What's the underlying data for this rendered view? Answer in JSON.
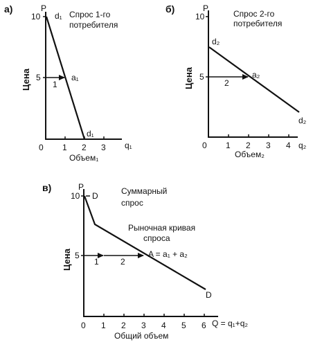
{
  "chart_data": [
    {
      "type": "line",
      "panel_label": "а)",
      "title": "Спрос 1-го потребителя",
      "title_lines": [
        "Спрос 1-го",
        "потребителя"
      ],
      "xlabel": "Объем₁",
      "ylabel": "Цена",
      "x_axis_symbol": "q₁",
      "y_axis_symbol": "P",
      "xlim": [
        0,
        3.7
      ],
      "ylim": [
        0,
        10.8
      ],
      "x_ticks": [
        "0",
        "1",
        "2",
        "3"
      ],
      "x_tick_values": [
        0,
        1,
        2,
        3
      ],
      "y_ticks": [
        "5",
        "10"
      ],
      "y_tick_values": [
        5,
        10
      ],
      "series": [
        {
          "name": "d₁",
          "x": [
            0,
            2
          ],
          "y": [
            10,
            0
          ]
        }
      ],
      "annotations": {
        "top_label": "d₁",
        "bottom_label": "d₁",
        "point_label": "a₁",
        "point": [
          1,
          5
        ],
        "segments": [
          {
            "label": "1",
            "x_from": 0,
            "x_to": 1,
            "y": 5
          }
        ]
      }
    },
    {
      "type": "line",
      "panel_label": "б)",
      "title": "Спрос 2-го потребителя",
      "title_lines": [
        "Спрос 2-го",
        "потребителя"
      ],
      "xlabel": "Объем₂",
      "ylabel": "Цена",
      "x_axis_symbol": "q₂",
      "y_axis_symbol": "P",
      "xlim": [
        0,
        4.6
      ],
      "ylim": [
        0,
        10.8
      ],
      "x_ticks": [
        "0",
        "1",
        "2",
        "3",
        "4"
      ],
      "x_tick_values": [
        0,
        1,
        2,
        3,
        4
      ],
      "y_ticks": [
        "5",
        "10"
      ],
      "y_tick_values": [
        5,
        10
      ],
      "series": [
        {
          "name": "d₂",
          "x": [
            0,
            4.5
          ],
          "y": [
            7.5,
            2.1
          ]
        }
      ],
      "annotations": {
        "top_label": "d₂",
        "bottom_label": "d₂",
        "point_label": "a₂",
        "point": [
          2,
          5
        ],
        "segments": [
          {
            "label": "2",
            "x_from": 0,
            "x_to": 2,
            "y": 5
          }
        ]
      }
    },
    {
      "type": "line",
      "panel_label": "в)",
      "title": "Суммарный спрос",
      "title_lines": [
        "Суммарный",
        "спрос"
      ],
      "subtitle": "Рыночная кривая спроса",
      "subtitle_lines": [
        "Рыночная кривая",
        "спроса"
      ],
      "xlabel": "Общий объем",
      "ylabel": "Цена",
      "x_axis_symbol": "Q = q₁+q₂",
      "y_axis_symbol": "P",
      "xlim": [
        0,
        6.9
      ],
      "ylim": [
        0,
        10.8
      ],
      "x_ticks": [
        "0",
        "1",
        "2",
        "3",
        "4",
        "5",
        "6"
      ],
      "x_tick_values": [
        0,
        1,
        2,
        3,
        4,
        5,
        6
      ],
      "y_ticks": [
        "5",
        "10"
      ],
      "y_tick_values": [
        5,
        10
      ],
      "series": [
        {
          "name": "D",
          "x": [
            0,
            0.5,
            6
          ],
          "y": [
            10,
            7.5,
            2.1
          ]
        }
      ],
      "annotations": {
        "top_label": "D",
        "bottom_label": "D",
        "point_label": "A = a₁ + a₂",
        "point": [
          3,
          5
        ],
        "segments": [
          {
            "label": "1",
            "x_from": 0,
            "x_to": 1,
            "y": 5
          },
          {
            "label": "2",
            "x_from": 1,
            "x_to": 3,
            "y": 5
          }
        ]
      }
    }
  ]
}
